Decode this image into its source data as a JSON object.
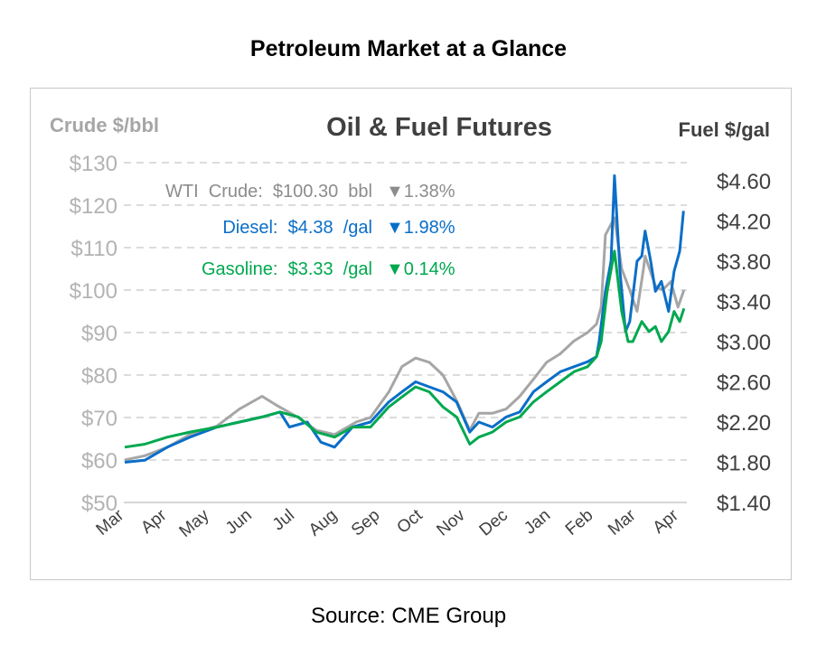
{
  "page_title": "Petroleum Market at a Glance",
  "source": "Source: CME Group",
  "chart_data": {
    "type": "line",
    "title": "Oil & Fuel Futures",
    "ylabel_left": "Crude $/bbl",
    "ylabel_right": "Fuel $/gal",
    "ylim_left": [
      50,
      130
    ],
    "ylim_right": [
      1.4,
      4.6
    ],
    "y_ticks_left": [
      "$50",
      "$60",
      "$70",
      "$80",
      "$90",
      "$100",
      "$110",
      "$120",
      "$130"
    ],
    "y_ticks_right": [
      "$1.40",
      "$1.80",
      "$2.20",
      "$2.60",
      "$3.00",
      "$3.40",
      "$3.80",
      "$4.20",
      "$4.60"
    ],
    "x_ticks": [
      "Mar",
      "Apr",
      "May",
      "Jun",
      "Jul",
      "Aug",
      "Sep",
      "Oct",
      "Nov",
      "Dec",
      "Jan",
      "Feb",
      "Mar",
      "Apr"
    ],
    "x_unit": "months since start of March",
    "grid": true,
    "legend": [
      {
        "label": "WTI Crude: $100.30 bbl",
        "change": "▼1.38%",
        "color": "#8c8c8c"
      },
      {
        "label": "Diesel:   $4.38 /gal",
        "change": "▼1.98%",
        "color": "#0a6ec8"
      },
      {
        "label": "Gasoline:   $3.33 /gal",
        "change": "▼0.14%",
        "color": "#00a84f"
      }
    ],
    "series": [
      {
        "name": "WTI Crude",
        "axis": "left",
        "color": "#a6a6a6",
        "x": [
          0,
          0.47,
          1.0,
          1.53,
          2.16,
          2.69,
          3.22,
          3.54,
          4.07,
          4.49,
          4.92,
          5.44,
          5.76,
          6.19,
          6.5,
          6.82,
          7.14,
          7.46,
          7.78,
          8.09,
          8.3,
          8.62,
          8.94,
          9.26,
          9.58,
          9.89,
          10.21,
          10.53,
          10.85,
          11.06,
          11.17,
          11.27,
          11.48,
          11.65,
          11.84,
          12.01,
          12.16,
          12.2,
          12.44,
          12.61,
          12.8,
          12.97,
          13.11
        ],
        "y": [
          60,
          61,
          63,
          66,
          68,
          72,
          75,
          73,
          70,
          67,
          66,
          69,
          70,
          76,
          82,
          84,
          83,
          80,
          74,
          67,
          71,
          71,
          72,
          75,
          79,
          83,
          85,
          88,
          90,
          92,
          96,
          113,
          117,
          105,
          100,
          95,
          105,
          108,
          101,
          100,
          102,
          96,
          100
        ]
      },
      {
        "name": "Diesel",
        "axis": "right",
        "color": "#0a6ec8",
        "x": [
          0,
          0.47,
          1.0,
          1.53,
          2.16,
          2.69,
          3.22,
          3.64,
          3.86,
          4.28,
          4.6,
          4.92,
          5.34,
          5.76,
          6.19,
          6.5,
          6.82,
          7.14,
          7.46,
          7.78,
          8.09,
          8.3,
          8.62,
          8.94,
          9.26,
          9.58,
          9.89,
          10.21,
          10.53,
          10.85,
          11.06,
          11.12,
          11.27,
          11.4,
          11.48,
          11.61,
          11.74,
          11.84,
          12.01,
          12.12,
          12.2,
          12.33,
          12.44,
          12.58,
          12.75,
          12.88,
          13.01,
          13.1
        ],
        "y": [
          1.8,
          1.82,
          1.95,
          2.05,
          2.15,
          2.2,
          2.25,
          2.3,
          2.15,
          2.2,
          2.0,
          1.95,
          2.15,
          2.2,
          2.4,
          2.5,
          2.6,
          2.55,
          2.5,
          2.4,
          2.1,
          2.2,
          2.15,
          2.25,
          2.3,
          2.5,
          2.6,
          2.7,
          2.75,
          2.8,
          2.85,
          3.0,
          3.5,
          3.8,
          4.65,
          3.7,
          3.1,
          3.2,
          3.8,
          3.85,
          4.1,
          3.8,
          3.5,
          3.6,
          3.3,
          3.7,
          3.9,
          4.3
        ]
      },
      {
        "name": "Gasoline",
        "axis": "right",
        "color": "#00a84f",
        "x": [
          0,
          0.47,
          1.0,
          1.53,
          2.16,
          2.69,
          3.22,
          3.64,
          4.07,
          4.49,
          4.92,
          5.34,
          5.76,
          6.19,
          6.5,
          6.82,
          7.14,
          7.46,
          7.78,
          8.09,
          8.3,
          8.62,
          8.94,
          9.26,
          9.58,
          9.89,
          10.21,
          10.53,
          10.85,
          11.06,
          11.17,
          11.31,
          11.48,
          11.65,
          11.8,
          11.91,
          12.12,
          12.29,
          12.44,
          12.58,
          12.75,
          12.88,
          13.01,
          13.11
        ],
        "y": [
          1.95,
          1.98,
          2.05,
          2.1,
          2.15,
          2.2,
          2.25,
          2.3,
          2.25,
          2.1,
          2.05,
          2.15,
          2.15,
          2.35,
          2.45,
          2.55,
          2.5,
          2.35,
          2.25,
          1.98,
          2.05,
          2.1,
          2.2,
          2.25,
          2.4,
          2.5,
          2.6,
          2.7,
          2.75,
          2.85,
          3.0,
          3.5,
          3.9,
          3.3,
          3.0,
          3.0,
          3.2,
          3.1,
          3.15,
          3.0,
          3.1,
          3.3,
          3.2,
          3.33
        ]
      }
    ]
  }
}
